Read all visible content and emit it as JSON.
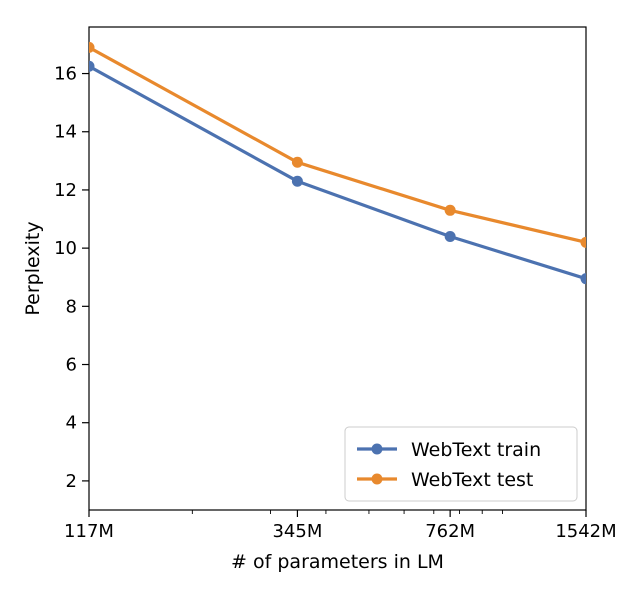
{
  "chart_data": {
    "type": "line",
    "title": "",
    "xlabel": "# of parameters in LM",
    "ylabel": "Perplexity",
    "x_scale": "log",
    "xlim": [
      117,
      1542
    ],
    "ylim": [
      1,
      17.6
    ],
    "categories": [
      "117M",
      "345M",
      "762M",
      "1542M"
    ],
    "x": [
      117,
      345,
      762,
      1542
    ],
    "yticks": [
      2,
      4,
      6,
      8,
      10,
      12,
      14,
      16
    ],
    "series": [
      {
        "name": "WebText train",
        "color": "#4c72b0",
        "values": [
          16.25,
          12.3,
          10.4,
          8.95
        ]
      },
      {
        "name": "WebText test",
        "color": "#e8892d",
        "values": [
          16.9,
          12.95,
          11.3,
          10.2
        ]
      }
    ],
    "legend": {
      "placement": "lower right"
    },
    "grid": false
  }
}
